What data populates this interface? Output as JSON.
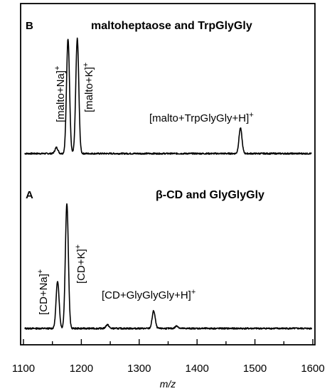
{
  "chart_data": [
    {
      "panel": "B",
      "title": "maltoheptaose and TrpGlyGly",
      "type": "line",
      "peaks": [
        {
          "x": 1157,
          "y": 0.05
        },
        {
          "x": 1177,
          "y": 0.95
        },
        {
          "x": 1193,
          "y": 0.95
        },
        {
          "x": 1475,
          "y": 0.21
        }
      ],
      "annotations": [
        {
          "text": "[malto+Na]",
          "sup": "+",
          "x": 1177
        },
        {
          "text": "[malto+K]",
          "sup": "+",
          "x": 1193
        },
        {
          "text": "[malto+TrpGlyGly+H]",
          "sup": "+",
          "x": 1475
        }
      ]
    },
    {
      "panel": "A",
      "title": "β-CD and GlyGlyGly",
      "type": "line",
      "peaks": [
        {
          "x": 1159,
          "y": 0.38
        },
        {
          "x": 1175,
          "y": 1.0
        },
        {
          "x": 1245,
          "y": 0.03
        },
        {
          "x": 1325,
          "y": 0.14
        },
        {
          "x": 1365,
          "y": 0.02
        }
      ],
      "annotations": [
        {
          "text": "[CD+Na]",
          "sup": "+",
          "x": 1159
        },
        {
          "text": "[CD+K]",
          "sup": "+",
          "x": 1175
        },
        {
          "text": "[CD+GlyGlyGly+H]",
          "sup": "+",
          "x": 1325
        }
      ]
    }
  ],
  "axis": {
    "xlabel": "m/z",
    "xlim": [
      1100,
      1600
    ],
    "ticks": [
      "1100",
      "1200",
      "1300",
      "1400",
      "1500",
      "1600"
    ]
  }
}
